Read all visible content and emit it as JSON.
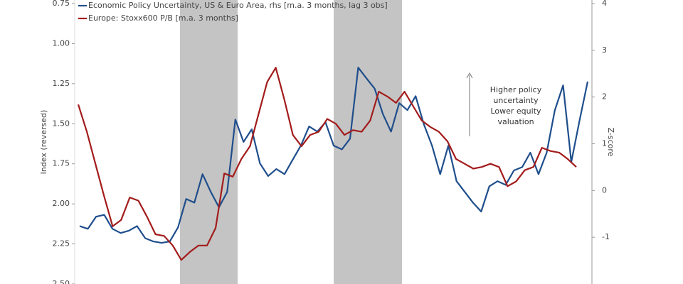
{
  "chart_data": {
    "type": "line",
    "ylabel": "Index (reversed)",
    "y2label": "Z-score",
    "ylim": [
      0.75,
      2.5
    ],
    "y_reversed": true,
    "yticks": [
      0.75,
      {
        "value": 1,
        "label": "1.00"
      },
      1.25,
      {
        "value": 1.5,
        "label": "1.50"
      },
      1.75,
      {
        "value": 2,
        "label": "2.00"
      },
      2.25,
      {
        "value": 2.5,
        "label": "2.50"
      }
    ],
    "y2lim": [
      -2,
      4
    ],
    "y2ticks": [
      4,
      3,
      2,
      1,
      0,
      -1
    ],
    "annotation": [
      "Higher policy",
      "uncertainty",
      "Lower equity",
      "valuation"
    ],
    "series": [
      {
        "name": "Economic Policy Uncertainty, US & Euro Area, rhs [m.a. 3 months, lag 3 obs]",
        "color": "#1f4e8c",
        "axis": "y2",
        "values": [
          -0.76,
          -0.82,
          -0.56,
          -0.52,
          -0.82,
          -0.91,
          -0.86,
          -0.76,
          -1.02,
          -1.09,
          -1.12,
          -1.09,
          -0.79,
          -0.18,
          -0.26,
          0.35,
          -0.03,
          -0.36,
          -0.03,
          1.52,
          1.04,
          1.31,
          0.58,
          0.31,
          0.46,
          0.35,
          0.66,
          0.96,
          1.37,
          1.26,
          1.46,
          0.96,
          0.88,
          1.11,
          2.63,
          2.4,
          2.18,
          1.64,
          1.26,
          1.87,
          1.72,
          2.02,
          1.42,
          0.96,
          0.35,
          0.96,
          0.2,
          -0.03,
          -0.26,
          -0.45,
          0.09,
          0.2,
          0.12,
          0.43,
          0.5,
          0.81,
          0.35,
          0.81,
          1.72,
          2.25,
          0.61,
          1.49,
          2.33
        ]
      },
      {
        "name": "Europe: Stoxx600 P/B [m.a. 3 months]",
        "color": "#a31b1b",
        "values": [
          1.38,
          1.55,
          1.75,
          1.95,
          2.14,
          2.1,
          1.96,
          1.98,
          2.08,
          2.19,
          2.2,
          2.26,
          2.35,
          2.3,
          2.26,
          2.26,
          2.15,
          1.81,
          1.83,
          1.72,
          1.64,
          1.44,
          1.24,
          1.15,
          1.35,
          1.57,
          1.64,
          1.57,
          1.55,
          1.47,
          1.5,
          1.57,
          1.54,
          1.55,
          1.48,
          1.3,
          1.33,
          1.37,
          1.3,
          1.39,
          1.48,
          1.52,
          1.55,
          1.61,
          1.72,
          1.75,
          1.78,
          1.77,
          1.75,
          1.77,
          1.89,
          1.86,
          1.79,
          1.77,
          1.65,
          1.67,
          1.68,
          1.72,
          1.77
        ]
      }
    ]
  }
}
